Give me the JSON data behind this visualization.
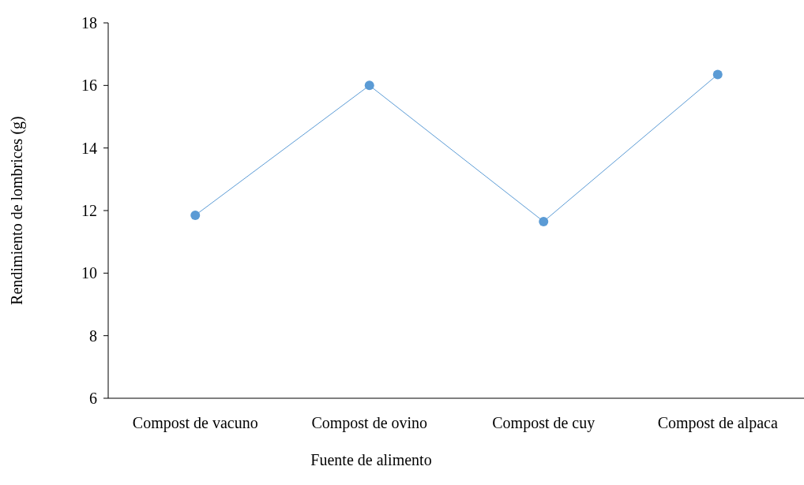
{
  "chart_data": {
    "type": "line",
    "xlabel": "Fuente de alimento",
    "ylabel": "Rendimiento de lombrices (g)",
    "categories": [
      "Compost de vacuno",
      "Compost de ovino",
      "Compost de cuy",
      "Compost de alpaca"
    ],
    "series": [
      {
        "color": "#5b9bd5",
        "values": [
          11.85,
          16.0,
          11.65,
          16.35
        ]
      }
    ],
    "ylim": [
      6,
      18
    ],
    "yticks": [
      6,
      8,
      10,
      12,
      14,
      16,
      18
    ],
    "marker": "circle",
    "line_style": "solid",
    "grid": false
  }
}
